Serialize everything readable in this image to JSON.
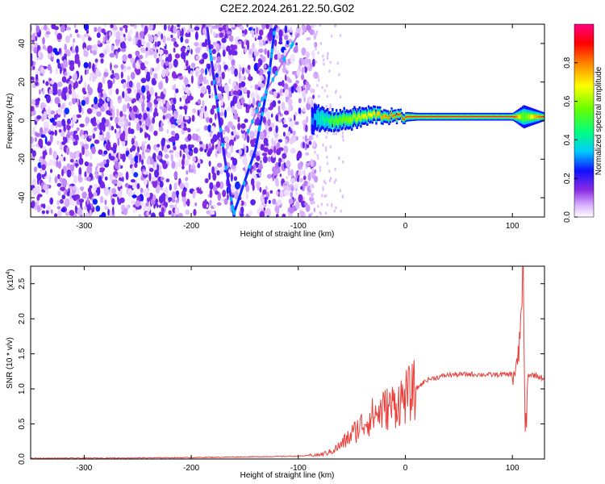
{
  "title": "C2E2.2024.261.22.50.G02",
  "colors": {
    "snr_line": "#e8413c",
    "dominant_fill": "#8a2be2",
    "track": "#2a2ad8",
    "background": "#ffffff"
  },
  "chart_data": [
    {
      "type": "heatmap",
      "xlabel": "Height of straight line (km)",
      "ylabel": "Frequency (Hz)",
      "xlim": [
        -350,
        130
      ],
      "ylim": [
        -50,
        50
      ],
      "x_ticks": [
        "-300",
        "-200",
        "-100",
        "0",
        "100"
      ],
      "x_tick_values": [
        -300,
        -200,
        -100,
        0,
        100
      ],
      "y_ticks": [
        "40",
        "20",
        "0",
        "-20",
        "-40"
      ],
      "y_tick_values": [
        40,
        20,
        0,
        -20,
        -40
      ],
      "colorbar": {
        "label": "Normalized spectral amplitude",
        "range": [
          0,
          1
        ],
        "ticks": [
          "0.0",
          "0.2",
          "0.4",
          "0.6",
          "0.8"
        ],
        "tick_values": [
          0,
          0.2,
          0.4,
          0.6,
          0.8
        ],
        "colormap": "rainbow (white-violet-blue-cyan-green-yellow-red-magenta)"
      },
      "noise_region": {
        "x_range": [
          -350,
          -88
        ],
        "dominant_level": 0.08
      },
      "tracks": [
        {
          "x": [
            -185,
            -178,
            -170,
            -160
          ],
          "y": [
            48,
            18,
            -15,
            -50
          ],
          "level": 0.2
        },
        {
          "x": [
            -160,
            -140,
            -128,
            -122
          ],
          "y": [
            -48,
            -15,
            20,
            48
          ],
          "level": 0.25
        },
        {
          "x": [
            -150,
            -135,
            -115,
            -100
          ],
          "y": [
            -10,
            10,
            30,
            45
          ],
          "level": 0.1
        }
      ],
      "carrier_band": {
        "x": [
          -88,
          -70,
          -50,
          -30,
          -10,
          10,
          40,
          70,
          100,
          110,
          130
        ],
        "y": [
          1,
          0,
          1,
          3,
          2,
          2,
          2,
          2,
          2,
          2,
          2
        ],
        "half_width": [
          7,
          5,
          5,
          4,
          3,
          2,
          2,
          2,
          2,
          6,
          2
        ],
        "peak_level": [
          0.3,
          0.5,
          0.6,
          0.7,
          0.85,
          0.9,
          0.95,
          0.95,
          0.95,
          0.5,
          0.95
        ]
      }
    },
    {
      "type": "line",
      "xlabel": "Height of straight line (km)",
      "ylabel": "SNR (10 * v/v)",
      "exponent_label": "(x10",
      "exponent_value": "4",
      "xlim": [
        -350,
        130
      ],
      "ylim": [
        0,
        27500
      ],
      "x_ticks": [
        "-300",
        "-200",
        "-100",
        "0",
        "100"
      ],
      "x_tick_values": [
        -300,
        -200,
        -100,
        0,
        100
      ],
      "y_ticks": [
        "0.0",
        "0.5",
        "1.0",
        "1.5",
        "2.0",
        "2.5"
      ],
      "y_tick_values": [
        0,
        5000,
        10000,
        15000,
        20000,
        25000
      ],
      "series": [
        {
          "color": "#e8413c",
          "x": [
            -350,
            -300,
            -250,
            -200,
            -150,
            -100,
            -80,
            -70,
            -60,
            -50,
            -40,
            -30,
            -20,
            -10,
            0,
            10,
            20,
            40,
            60,
            80,
            100,
            105,
            108,
            110,
            112,
            115,
            120,
            130
          ],
          "y": [
            100,
            120,
            150,
            200,
            300,
            400,
            600,
            1000,
            2000,
            3500,
            5000,
            6200,
            7000,
            7800,
            8800,
            10000,
            11300,
            12000,
            12100,
            12000,
            12100,
            13000,
            20000,
            27500,
            3000,
            12000,
            12000,
            11500
          ]
        }
      ]
    }
  ]
}
